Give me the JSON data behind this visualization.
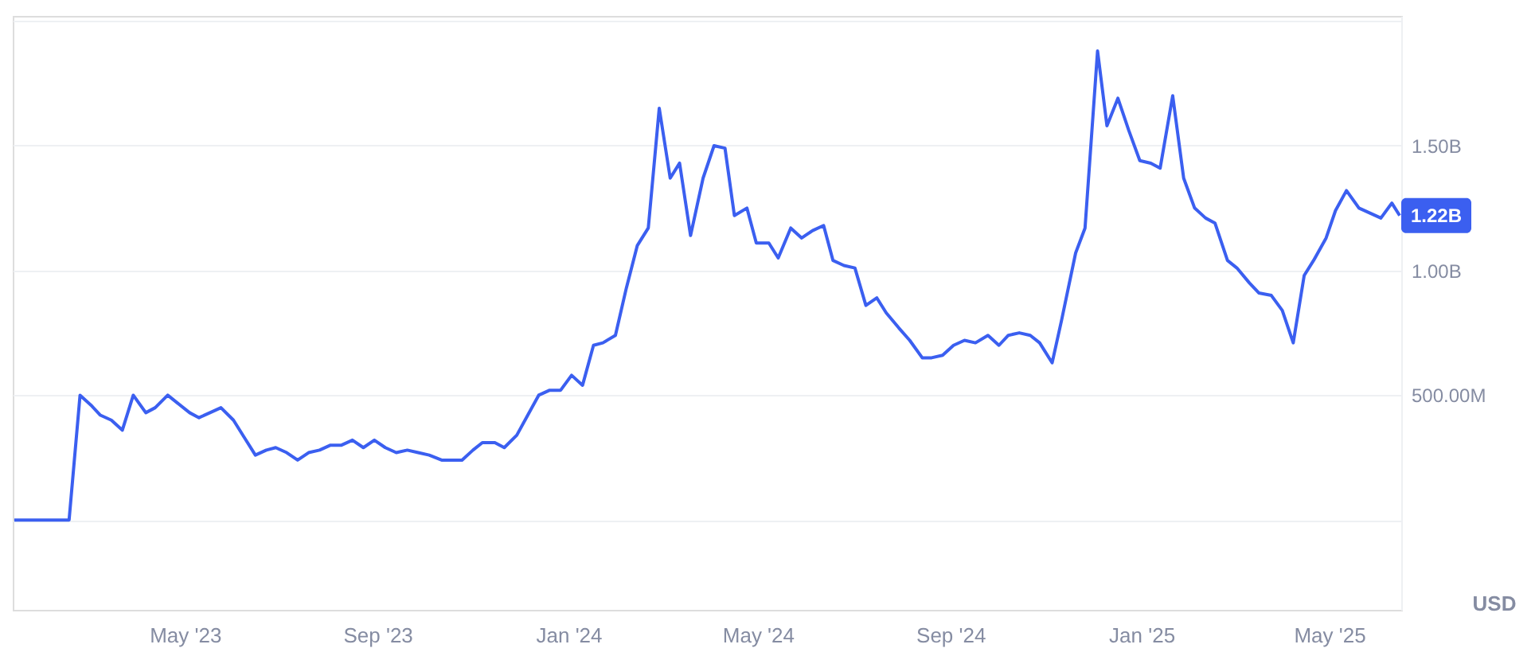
{
  "chart_data": {
    "type": "line",
    "ylabel": "USD",
    "grid": "y",
    "marker": "none",
    "line_style": "solid",
    "xlim": [
      "2023-01-11",
      "2025-06-16"
    ],
    "xticks": [
      {
        "value": "2023-05-01",
        "label": "May '23"
      },
      {
        "value": "2023-09-01",
        "label": "Sep '23"
      },
      {
        "value": "2024-01-01",
        "label": "Jan '24"
      },
      {
        "value": "2024-05-01",
        "label": "May '24"
      },
      {
        "value": "2024-09-01",
        "label": "Sep '24"
      },
      {
        "value": "2025-01-01",
        "label": "Jan '25"
      },
      {
        "value": "2025-05-01",
        "label": "May '25"
      }
    ],
    "ylim": [
      -360000000.0,
      2020000000.0
    ],
    "yticks": [
      {
        "value": 0,
        "label": null
      },
      {
        "value": 500000000.0,
        "label": "500.00M"
      },
      {
        "value": 1000000000.0,
        "label": "1.00B"
      },
      {
        "value": 1500000000.0,
        "label": "1.50B"
      },
      {
        "value": 2000000000.0,
        "label": null
      }
    ],
    "annotations": [
      {
        "text": "1.22B",
        "x": "2025-06-15",
        "y": 1220000000.0
      }
    ],
    "x": [
      "2023-01-12",
      "2023-02-16",
      "2023-02-23",
      "2023-03-02",
      "2023-03-08",
      "2023-03-15",
      "2023-03-22",
      "2023-03-29",
      "2023-04-06",
      "2023-04-12",
      "2023-04-20",
      "2023-04-26",
      "2023-05-04",
      "2023-05-10",
      "2023-05-17",
      "2023-05-24",
      "2023-06-01",
      "2023-06-08",
      "2023-06-15",
      "2023-06-22",
      "2023-06-28",
      "2023-07-05",
      "2023-07-12",
      "2023-07-19",
      "2023-07-26",
      "2023-08-02",
      "2023-08-09",
      "2023-08-16",
      "2023-08-23",
      "2023-08-30",
      "2023-09-06",
      "2023-09-13",
      "2023-09-20",
      "2023-09-27",
      "2023-10-04",
      "2023-10-12",
      "2023-10-18",
      "2023-10-25",
      "2023-11-01",
      "2023-11-07",
      "2023-11-15",
      "2023-11-21",
      "2023-11-29",
      "2023-12-06",
      "2023-12-13",
      "2023-12-20",
      "2023-12-27",
      "2024-01-03",
      "2024-01-10",
      "2024-01-17",
      "2024-01-23",
      "2024-01-31",
      "2024-02-07",
      "2024-02-14",
      "2024-02-21",
      "2024-02-28",
      "2024-03-06",
      "2024-03-12",
      "2024-03-19",
      "2024-03-27",
      "2024-04-03",
      "2024-04-10",
      "2024-04-16",
      "2024-04-24",
      "2024-04-30",
      "2024-05-08",
      "2024-05-14",
      "2024-05-22",
      "2024-05-29",
      "2024-06-05",
      "2024-06-12",
      "2024-06-18",
      "2024-06-25",
      "2024-07-02",
      "2024-07-09",
      "2024-07-16",
      "2024-07-22",
      "2024-07-30",
      "2024-08-06",
      "2024-08-14",
      "2024-08-20",
      "2024-08-27",
      "2024-09-03",
      "2024-09-10",
      "2024-09-17",
      "2024-09-25",
      "2024-10-02",
      "2024-10-08",
      "2024-10-15",
      "2024-10-22",
      "2024-10-28",
      "2024-11-05",
      "2024-11-11",
      "2024-11-20",
      "2024-11-26",
      "2024-12-04",
      "2024-12-10",
      "2024-12-17",
      "2024-12-24",
      "2024-12-31",
      "2025-01-07",
      "2025-01-13",
      "2025-01-21",
      "2025-01-28",
      "2025-02-04",
      "2025-02-11",
      "2025-02-17",
      "2025-02-25",
      "2025-03-03",
      "2025-03-11",
      "2025-03-17",
      "2025-03-25",
      "2025-04-01",
      "2025-04-08",
      "2025-04-15",
      "2025-04-21",
      "2025-04-29",
      "2025-05-05",
      "2025-05-12",
      "2025-05-20",
      "2025-05-27",
      "2025-06-03",
      "2025-06-10",
      "2025-06-15"
    ],
    "series": [
      {
        "color": "#3b5ff0",
        "values": [
          0,
          0,
          500000000.0,
          460000000.0,
          420000000.0,
          400000000.0,
          360000000.0,
          500000000.0,
          430000000.0,
          450000000.0,
          500000000.0,
          470000000.0,
          430000000.0,
          410000000.0,
          430000000.0,
          450000000.0,
          400000000.0,
          330000000.0,
          260000000.0,
          280000000.0,
          290000000.0,
          270000000.0,
          240000000.0,
          270000000.0,
          280000000.0,
          300000000.0,
          300000000.0,
          320000000.0,
          290000000.0,
          320000000.0,
          290000000.0,
          270000000.0,
          280000000.0,
          270000000.0,
          260000000.0,
          240000000.0,
          240000000.0,
          240000000.0,
          280000000.0,
          310000000.0,
          310000000.0,
          290000000.0,
          340000000.0,
          420000000.0,
          500000000.0,
          520000000.0,
          520000000.0,
          580000000.0,
          540000000.0,
          700000000.0,
          710000000.0,
          740000000.0,
          930000000.0,
          1100000000.0,
          1170000000.0,
          1650000000.0,
          1370000000.0,
          1430000000.0,
          1140000000.0,
          1370000000.0,
          1500000000.0,
          1490000000.0,
          1220000000.0,
          1250000000.0,
          1110000000.0,
          1110000000.0,
          1050000000.0,
          1170000000.0,
          1130000000.0,
          1160000000.0,
          1180000000.0,
          1040000000.0,
          1020000000.0,
          1010000000.0,
          860000000.0,
          890000000.0,
          830000000.0,
          770000000.0,
          720000000.0,
          650000000.0,
          650000000.0,
          660000000.0,
          700000000.0,
          720000000.0,
          710000000.0,
          740000000.0,
          700000000.0,
          740000000.0,
          750000000.0,
          740000000.0,
          710000000.0,
          630000000.0,
          800000000.0,
          1070000000.0,
          1170000000.0,
          1880000000.0,
          1580000000.0,
          1690000000.0,
          1560000000.0,
          1440000000.0,
          1430000000.0,
          1410000000.0,
          1700000000.0,
          1370000000.0,
          1250000000.0,
          1210000000.0,
          1190000000.0,
          1040000000.0,
          1010000000.0,
          950000000.0,
          910000000.0,
          900000000.0,
          840000000.0,
          710000000.0,
          980000000.0,
          1040000000.0,
          1130000000.0,
          1240000000.0,
          1320000000.0,
          1250000000.0,
          1230000000.0,
          1210000000.0,
          1270000000.0,
          1220000000.0
        ]
      }
    ]
  }
}
